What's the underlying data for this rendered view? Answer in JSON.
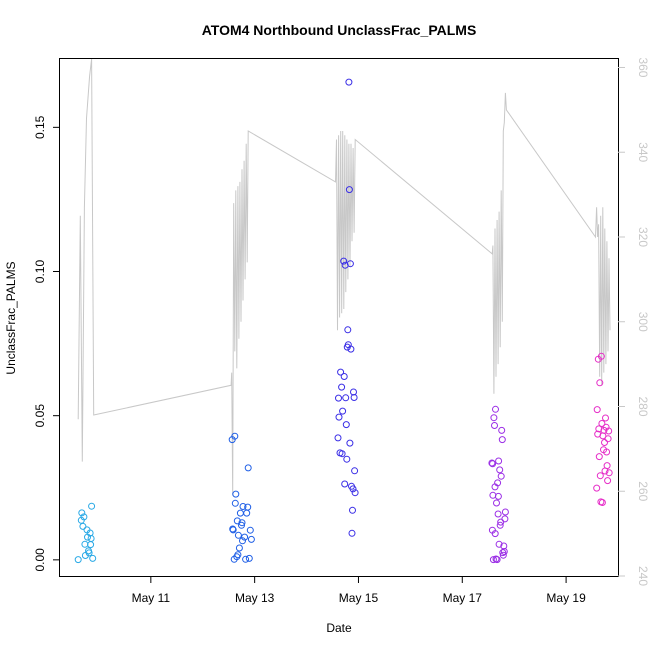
{
  "chart_data": {
    "type": "scatter",
    "title": "ATOM4 Northbound UnclassFrac_PALMS",
    "xlabel": "Date",
    "ylabel": "UnclassFrac_PALMS",
    "xlim": [
      "2018-05-09T06:00",
      "2018-05-20T00:00"
    ],
    "ylim": [
      -0.0056,
      0.1737
    ],
    "y2lim": [
      240,
      362
    ],
    "x_ticks": [
      {
        "label": "May 11",
        "x": "2018-05-11"
      },
      {
        "label": "May 13",
        "x": "2018-05-13"
      },
      {
        "label": "May 15",
        "x": "2018-05-15"
      },
      {
        "label": "May 17",
        "x": "2018-05-17"
      },
      {
        "label": "May 19",
        "x": "2018-05-19"
      }
    ],
    "y_ticks": [
      {
        "label": "0.00",
        "value": 0.0
      },
      {
        "label": "0.05",
        "value": 0.05
      },
      {
        "label": "0.10",
        "value": 0.1
      },
      {
        "label": "0.15",
        "value": 0.15
      }
    ],
    "y2_ticks": [
      {
        "label": "240",
        "value": 240
      },
      {
        "label": "260",
        "value": 260
      },
      {
        "label": "280",
        "value": 280
      },
      {
        "label": "300",
        "value": 300
      },
      {
        "label": "320",
        "value": 320
      },
      {
        "label": "340",
        "value": 340
      },
      {
        "label": "360",
        "value": 360
      }
    ],
    "secondary_line_color": "#c8c8c8",
    "series": [
      {
        "color": "#29a9e6",
        "points": [
          [
            "2018-05-09T14:24",
            0.0001
          ],
          [
            "2018-05-09T15:50",
            0.0137
          ],
          [
            "2018-05-09T16:05",
            0.0163
          ],
          [
            "2018-05-09T16:34",
            0.0116
          ],
          [
            "2018-05-09T17:31",
            0.0054
          ],
          [
            "2018-05-09T17:45",
            0.0015
          ],
          [
            "2018-05-09T18:29",
            0.0104
          ],
          [
            "2018-05-09T18:43",
            0.0079
          ],
          [
            "2018-05-09T19:12",
            0.0031
          ],
          [
            "2018-05-09T19:55",
            0.0093
          ],
          [
            "2018-05-09T20:10",
            0.0053
          ],
          [
            "2018-05-09T20:24",
            0.0074
          ],
          [
            "2018-05-09T20:38",
            0.0186
          ],
          [
            "2018-05-09T21:07",
            0.0005
          ],
          [
            "2018-05-09T17:02",
            0.0149
          ],
          [
            "2018-05-09T19:26",
            0.0024
          ]
        ]
      },
      {
        "color": "#1f5fe6",
        "points": [
          [
            "2018-05-12T13:36",
            0.0417
          ],
          [
            "2018-05-12T14:48",
            0.0429
          ],
          [
            "2018-05-12T13:50",
            0.0107
          ],
          [
            "2018-05-12T14:05",
            0.0104
          ],
          [
            "2018-05-12T14:34",
            0.0002
          ],
          [
            "2018-05-12T15:02",
            0.0196
          ],
          [
            "2018-05-12T15:17",
            0.0228
          ],
          [
            "2018-05-12T15:46",
            0.0011
          ],
          [
            "2018-05-12T16:00",
            0.0135
          ],
          [
            "2018-05-12T16:29",
            0.0085
          ],
          [
            "2018-05-12T16:58",
            0.0041
          ],
          [
            "2018-05-12T17:26",
            0.0162
          ],
          [
            "2018-05-12T17:55",
            0.012
          ],
          [
            "2018-05-12T18:24",
            0.0066
          ],
          [
            "2018-05-12T18:38",
            0.0185
          ],
          [
            "2018-05-12T19:22",
            0.0079
          ],
          [
            "2018-05-12T19:50",
            0.0002
          ],
          [
            "2018-05-12T20:19",
            0.0162
          ],
          [
            "2018-05-12T20:48",
            0.0183
          ],
          [
            "2018-05-12T21:02",
            0.0319
          ],
          [
            "2018-05-12T21:31",
            0.0005
          ],
          [
            "2018-05-12T22:00",
            0.0103
          ],
          [
            "2018-05-12T22:29",
            0.0071
          ],
          [
            "2018-05-12T16:14",
            0.0018
          ],
          [
            "2018-05-12T18:10",
            0.0129
          ]
        ]
      },
      {
        "color": "#3a2ee6",
        "points": [
          [
            "2018-05-14T14:31",
            0.0423
          ],
          [
            "2018-05-14T14:46",
            0.0561
          ],
          [
            "2018-05-14T15:00",
            0.0495
          ],
          [
            "2018-05-14T15:29",
            0.0371
          ],
          [
            "2018-05-14T15:43",
            0.0651
          ],
          [
            "2018-05-14T16:12",
            0.0599
          ],
          [
            "2018-05-14T16:26",
            0.0368
          ],
          [
            "2018-05-14T16:41",
            0.0516
          ],
          [
            "2018-05-14T17:10",
            0.1036
          ],
          [
            "2018-05-14T17:24",
            0.0636
          ],
          [
            "2018-05-14T17:38",
            0.0263
          ],
          [
            "2018-05-14T17:53",
            0.1022
          ],
          [
            "2018-05-14T18:07",
            0.0562
          ],
          [
            "2018-05-14T18:22",
            0.0469
          ],
          [
            "2018-05-14T18:36",
            0.0349
          ],
          [
            "2018-05-14T18:50",
            0.0738
          ],
          [
            "2018-05-14T19:05",
            0.0798
          ],
          [
            "2018-05-14T19:19",
            0.0746
          ],
          [
            "2018-05-14T19:34",
            0.1657
          ],
          [
            "2018-05-14T19:48",
            0.1284
          ],
          [
            "2018-05-14T20:02",
            0.0405
          ],
          [
            "2018-05-14T20:17",
            0.1027
          ],
          [
            "2018-05-14T20:31",
            0.0731
          ],
          [
            "2018-05-14T20:46",
            0.0255
          ],
          [
            "2018-05-14T21:00",
            0.0092
          ],
          [
            "2018-05-14T21:14",
            0.0172
          ],
          [
            "2018-05-14T21:29",
            0.0246
          ],
          [
            "2018-05-14T21:43",
            0.0582
          ],
          [
            "2018-05-14T21:58",
            0.0563
          ],
          [
            "2018-05-14T22:12",
            0.0309
          ],
          [
            "2018-05-14T22:26",
            0.0233
          ]
        ]
      },
      {
        "color": "#9b2ee6",
        "points": [
          [
            "2018-05-17T13:41",
            0.0336
          ],
          [
            "2018-05-17T13:55",
            0.0103
          ],
          [
            "2018-05-17T14:10",
            0.0224
          ],
          [
            "2018-05-17T14:24",
            0.0001
          ],
          [
            "2018-05-17T14:38",
            0.0493
          ],
          [
            "2018-05-17T14:53",
            0.0466
          ],
          [
            "2018-05-17T15:07",
            0.0253
          ],
          [
            "2018-05-17T15:22",
            0.0522
          ],
          [
            "2018-05-17T15:36",
            0.0003
          ],
          [
            "2018-05-17T15:50",
            0.0197
          ],
          [
            "2018-05-17T16:05",
            0.0001
          ],
          [
            "2018-05-17T16:19",
            0.0267
          ],
          [
            "2018-05-17T16:34",
            0.0159
          ],
          [
            "2018-05-17T16:48",
            0.0343
          ],
          [
            "2018-05-17T17:02",
            0.0054
          ],
          [
            "2018-05-17T17:17",
            0.0312
          ],
          [
            "2018-05-17T17:31",
            0.012
          ],
          [
            "2018-05-17T17:46",
            0.0131
          ],
          [
            "2018-05-17T18:00",
            0.029
          ],
          [
            "2018-05-17T18:14",
            0.0449
          ],
          [
            "2018-05-17T18:29",
            0.0417
          ],
          [
            "2018-05-17T18:43",
            0.0025
          ],
          [
            "2018-05-17T18:58",
            0.0016
          ],
          [
            "2018-05-17T19:12",
            0.0048
          ],
          [
            "2018-05-17T19:26",
            0.0029
          ],
          [
            "2018-05-17T19:41",
            0.0142
          ],
          [
            "2018-05-17T19:55",
            0.0166
          ],
          [
            "2018-05-17T14:02",
            0.0333
          ],
          [
            "2018-05-17T15:14",
            0.0091
          ],
          [
            "2018-05-17T16:41",
            0.022
          ]
        ]
      },
      {
        "color": "#e62ec8",
        "points": [
          [
            "2018-05-19T14:10",
            0.0249
          ],
          [
            "2018-05-19T14:24",
            0.0521
          ],
          [
            "2018-05-19T14:38",
            0.0436
          ],
          [
            "2018-05-19T14:53",
            0.0696
          ],
          [
            "2018-05-19T15:07",
            0.0454
          ],
          [
            "2018-05-19T15:22",
            0.0358
          ],
          [
            "2018-05-19T15:36",
            0.0614
          ],
          [
            "2018-05-19T15:50",
            0.0292
          ],
          [
            "2018-05-19T16:05",
            0.0201
          ],
          [
            "2018-05-19T16:19",
            0.0706
          ],
          [
            "2018-05-19T16:34",
            0.0473
          ],
          [
            "2018-05-19T16:48",
            0.0199
          ],
          [
            "2018-05-19T17:02",
            0.043
          ],
          [
            "2018-05-19T17:17",
            0.0382
          ],
          [
            "2018-05-19T17:31",
            0.0449
          ],
          [
            "2018-05-19T17:46",
            0.0407
          ],
          [
            "2018-05-19T18:00",
            0.0308
          ],
          [
            "2018-05-19T18:14",
            0.0492
          ],
          [
            "2018-05-19T18:29",
            0.046
          ],
          [
            "2018-05-19T18:43",
            0.0374
          ],
          [
            "2018-05-19T18:58",
            0.0327
          ],
          [
            "2018-05-19T19:12",
            0.0275
          ],
          [
            "2018-05-19T19:26",
            0.042
          ],
          [
            "2018-05-19T19:41",
            0.0447
          ],
          [
            "2018-05-19T19:55",
            0.0302
          ]
        ]
      }
    ],
    "secondary_line": [
      [
        "2018-05-09T14:24",
        277
      ],
      [
        "2018-05-09T15:22",
        325
      ],
      [
        "2018-05-09T16:19",
        267
      ],
      [
        "2018-05-09T17:17",
        327
      ],
      [
        "2018-05-09T18:14",
        348
      ],
      [
        "2018-05-09T19:41",
        358
      ],
      [
        "2018-05-09T20:38",
        362
      ],
      [
        "2018-05-09T21:36",
        278
      ],
      [
        "2018-05-12T13:07",
        285
      ],
      [
        "2018-05-12T13:22",
        288
      ],
      [
        "2018-05-12T13:50",
        259
      ],
      [
        "2018-05-12T14:19",
        328
      ],
      [
        "2018-05-12T14:48",
        293
      ],
      [
        "2018-05-12T15:17",
        331
      ],
      [
        "2018-05-12T15:46",
        289
      ],
      [
        "2018-05-12T16:14",
        332
      ],
      [
        "2018-05-12T16:43",
        296
      ],
      [
        "2018-05-12T17:12",
        333
      ],
      [
        "2018-05-12T17:41",
        300
      ],
      [
        "2018-05-12T18:10",
        336
      ],
      [
        "2018-05-12T18:38",
        305
      ],
      [
        "2018-05-12T19:07",
        338
      ],
      [
        "2018-05-12T19:36",
        310
      ],
      [
        "2018-05-12T20:05",
        342
      ],
      [
        "2018-05-12T20:34",
        314
      ],
      [
        "2018-05-12T21:02",
        345
      ],
      [
        "2018-05-14T13:22",
        333
      ],
      [
        "2018-05-14T13:50",
        343
      ],
      [
        "2018-05-14T14:19",
        298
      ],
      [
        "2018-05-14T14:48",
        344
      ],
      [
        "2018-05-14T15:17",
        301
      ],
      [
        "2018-05-14T15:46",
        345
      ],
      [
        "2018-05-14T16:14",
        302
      ],
      [
        "2018-05-14T16:43",
        345
      ],
      [
        "2018-05-14T17:12",
        303
      ],
      [
        "2018-05-14T17:41",
        344
      ],
      [
        "2018-05-14T18:10",
        307
      ],
      [
        "2018-05-14T18:38",
        343
      ],
      [
        "2018-05-14T19:07",
        310
      ],
      [
        "2018-05-14T19:36",
        342
      ],
      [
        "2018-05-14T20:05",
        313
      ],
      [
        "2018-05-14T20:34",
        342
      ],
      [
        "2018-05-14T21:02",
        319
      ],
      [
        "2018-05-14T21:31",
        341
      ],
      [
        "2018-05-14T22:00",
        321
      ],
      [
        "2018-05-14T22:29",
        343
      ],
      [
        "2018-05-17T13:50",
        316
      ],
      [
        "2018-05-17T14:10",
        318
      ],
      [
        "2018-05-17T14:38",
        283
      ],
      [
        "2018-05-17T15:07",
        322
      ],
      [
        "2018-05-17T15:36",
        287
      ],
      [
        "2018-05-17T16:05",
        324
      ],
      [
        "2018-05-17T16:34",
        290
      ],
      [
        "2018-05-17T17:02",
        326
      ],
      [
        "2018-05-17T17:31",
        294
      ],
      [
        "2018-05-17T18:00",
        331
      ],
      [
        "2018-05-17T18:29",
        300
      ],
      [
        "2018-05-17T18:58",
        345
      ],
      [
        "2018-05-17T19:26",
        347
      ],
      [
        "2018-05-17T19:55",
        354
      ],
      [
        "2018-05-17T20:24",
        350
      ],
      [
        "2018-05-19T13:36",
        320
      ],
      [
        "2018-05-19T14:05",
        327
      ],
      [
        "2018-05-19T14:34",
        320
      ],
      [
        "2018-05-19T15:02",
        323
      ],
      [
        "2018-05-19T15:31",
        287
      ],
      [
        "2018-05-19T16:00",
        325
      ],
      [
        "2018-05-19T16:29",
        285
      ],
      [
        "2018-05-19T16:58",
        327
      ],
      [
        "2018-05-19T17:26",
        288
      ],
      [
        "2018-05-19T17:55",
        322
      ],
      [
        "2018-05-19T18:24",
        290
      ],
      [
        "2018-05-19T18:53",
        319
      ],
      [
        "2018-05-19T19:22",
        293
      ],
      [
        "2018-05-19T19:50",
        315
      ],
      [
        "2018-05-19T20:19",
        298
      ]
    ]
  }
}
